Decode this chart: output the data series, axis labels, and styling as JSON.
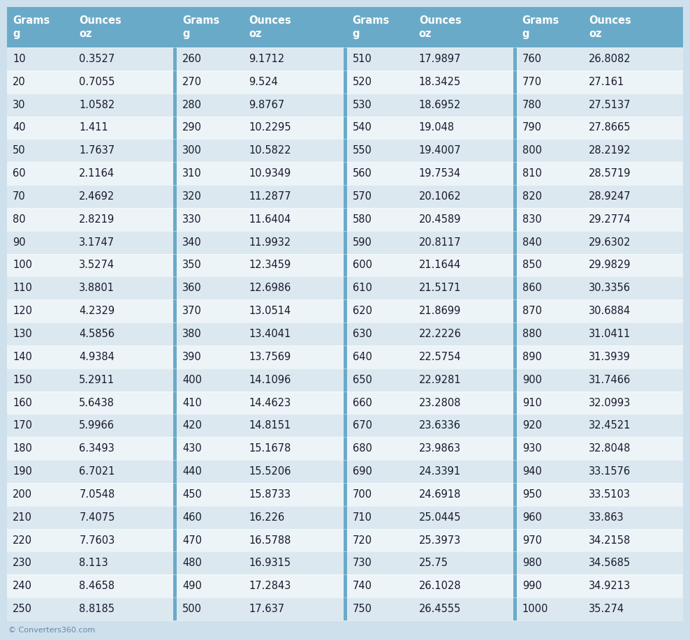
{
  "watermark": "© Converters360.com",
  "header_bg": "#6aaac9",
  "header_text_color": "#ffffff",
  "row_bg_odd": "#dce8f0",
  "row_bg_even": "#edf4f8",
  "outer_bg": "#cde0ec",
  "cell_text_color": "#1a1a2e",
  "divider_bg": "#6aaac9",
  "header_labels": [
    "Grams\ng",
    "Ounces\noz",
    "Grams\ng",
    "Ounces\noz",
    "Grams\ng",
    "Ounces\noz",
    "Grams\ng",
    "Ounces\noz"
  ],
  "data": [
    [
      10,
      0.3527,
      260,
      9.1712,
      510,
      17.9897,
      760,
      26.8082
    ],
    [
      20,
      0.7055,
      270,
      9.524,
      520,
      18.3425,
      770,
      27.161
    ],
    [
      30,
      1.0582,
      280,
      9.8767,
      530,
      18.6952,
      780,
      27.5137
    ],
    [
      40,
      1.411,
      290,
      10.2295,
      540,
      19.048,
      790,
      27.8665
    ],
    [
      50,
      1.7637,
      300,
      10.5822,
      550,
      19.4007,
      800,
      28.2192
    ],
    [
      60,
      2.1164,
      310,
      10.9349,
      560,
      19.7534,
      810,
      28.5719
    ],
    [
      70,
      2.4692,
      320,
      11.2877,
      570,
      20.1062,
      820,
      28.9247
    ],
    [
      80,
      2.8219,
      330,
      11.6404,
      580,
      20.4589,
      830,
      29.2774
    ],
    [
      90,
      3.1747,
      340,
      11.9932,
      590,
      20.8117,
      840,
      29.6302
    ],
    [
      100,
      3.5274,
      350,
      12.3459,
      600,
      21.1644,
      850,
      29.9829
    ],
    [
      110,
      3.8801,
      360,
      12.6986,
      610,
      21.5171,
      860,
      30.3356
    ],
    [
      120,
      4.2329,
      370,
      13.0514,
      620,
      21.8699,
      870,
      30.6884
    ],
    [
      130,
      4.5856,
      380,
      13.4041,
      630,
      22.2226,
      880,
      31.0411
    ],
    [
      140,
      4.9384,
      390,
      13.7569,
      640,
      22.5754,
      890,
      31.3939
    ],
    [
      150,
      5.2911,
      400,
      14.1096,
      650,
      22.9281,
      900,
      31.7466
    ],
    [
      160,
      5.6438,
      410,
      14.4623,
      660,
      23.2808,
      910,
      32.0993
    ],
    [
      170,
      5.9966,
      420,
      14.8151,
      670,
      23.6336,
      920,
      32.4521
    ],
    [
      180,
      6.3493,
      430,
      15.1678,
      680,
      23.9863,
      930,
      32.8048
    ],
    [
      190,
      6.7021,
      440,
      15.5206,
      690,
      24.3391,
      940,
      33.1576
    ],
    [
      200,
      7.0548,
      450,
      15.8733,
      700,
      24.6918,
      950,
      33.5103
    ],
    [
      210,
      7.4075,
      460,
      16.226,
      710,
      25.0445,
      960,
      33.863
    ],
    [
      220,
      7.7603,
      470,
      16.5788,
      720,
      25.3973,
      970,
      34.2158
    ],
    [
      230,
      8.113,
      480,
      16.9315,
      730,
      25.75,
      980,
      34.5685
    ],
    [
      240,
      8.4658,
      490,
      17.2843,
      740,
      26.1028,
      990,
      34.9213
    ],
    [
      250,
      8.8185,
      500,
      17.637,
      750,
      26.4555,
      1000,
      35.274
    ]
  ],
  "font_size_header": 10.5,
  "font_size_data": 10.5,
  "font_size_watermark": 8.0,
  "font_family": "Georgia"
}
